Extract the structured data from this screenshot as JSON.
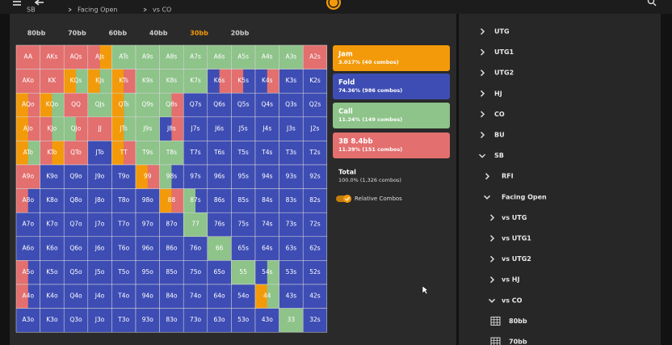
{
  "header": {
    "breadcrumb": [
      "SB",
      "Facing Open",
      "vs CO"
    ]
  },
  "stacks": {
    "items": [
      "80bb",
      "70bb",
      "60bb",
      "40bb",
      "30bb",
      "20bb"
    ],
    "selected": 4
  },
  "actions": [
    {
      "name": "Jam",
      "stats": "3.017% (40 combos)",
      "color": "#f39a0b"
    },
    {
      "name": "Fold",
      "stats": "74.36% (986 combos)",
      "color": "#3e4db4"
    },
    {
      "name": "Call",
      "stats": "11.24% (149 combos)",
      "color": "#8ec38a"
    },
    {
      "name": "3B 8.4bb",
      "stats": "11.39% (151 combos)",
      "color": "#e36f6f"
    }
  ],
  "grid": {
    "hands": [
      [
        "AA",
        "AKs",
        "AQs",
        "AJs",
        "ATs",
        "A9s",
        "A8s",
        "A7s",
        "A6s",
        "A5s",
        "A4s",
        "A3s",
        "A2s"
      ],
      [
        "AKo",
        "KK",
        "KQs",
        "KJs",
        "KTs",
        "K9s",
        "K8s",
        "K7s",
        "K6s",
        "K5s",
        "K4s",
        "K3s",
        "K2s"
      ],
      [
        "AQo",
        "KQo",
        "QQ",
        "QJs",
        "QTs",
        "Q9s",
        "Q8s",
        "Q7s",
        "Q6s",
        "Q5s",
        "Q4s",
        "Q3s",
        "Q2s"
      ],
      [
        "AJo",
        "KJo",
        "QJo",
        "JJ",
        "JTs",
        "J9s",
        "J8s",
        "J7s",
        "J6s",
        "J5s",
        "J4s",
        "J3s",
        "J2s"
      ],
      [
        "ATo",
        "KTo",
        "QTo",
        "JTo",
        "TT",
        "T9s",
        "T8s",
        "T7s",
        "T6s",
        "T5s",
        "T4s",
        "T3s",
        "T2s"
      ],
      [
        "A9o",
        "K9o",
        "Q9o",
        "J9o",
        "T9o",
        "99",
        "98s",
        "97s",
        "96s",
        "95s",
        "94s",
        "93s",
        "92s"
      ],
      [
        "A8o",
        "K8o",
        "Q8o",
        "J8o",
        "T8o",
        "98o",
        "88",
        "87s",
        "86s",
        "85s",
        "84s",
        "83s",
        "82s"
      ],
      [
        "A7o",
        "K7o",
        "Q7o",
        "J7o",
        "T7o",
        "97o",
        "87o",
        "77",
        "76s",
        "75s",
        "74s",
        "73s",
        "72s"
      ],
      [
        "A6o",
        "K6o",
        "Q6o",
        "J6o",
        "T6o",
        "96o",
        "86o",
        "76o",
        "66",
        "65s",
        "64s",
        "63s",
        "62s"
      ],
      [
        "A5o",
        "K5o",
        "Q5o",
        "J5o",
        "T5o",
        "95o",
        "85o",
        "75o",
        "65o",
        "55",
        "54s",
        "53s",
        "52s"
      ],
      [
        "A4o",
        "K4o",
        "Q4o",
        "J4o",
        "T4o",
        "94o",
        "84o",
        "74o",
        "64o",
        "54o",
        "44",
        "43s",
        "42s"
      ],
      [
        "A3o",
        "K3o",
        "Q3o",
        "J3o",
        "T3o",
        "93o",
        "83o",
        "73o",
        "63o",
        "53o",
        "43o",
        "33",
        "32s"
      ]
    ],
    "fills": [
      [
        "3",
        "3",
        "3",
        "30",
        "2",
        "2",
        "2",
        "2",
        "2",
        "2",
        "2",
        "2",
        "3"
      ],
      [
        "3",
        "3",
        "02",
        "02",
        "03",
        "2",
        "2",
        "2",
        "13",
        "31",
        "13",
        "1",
        "1"
      ],
      [
        "03",
        "02",
        "3",
        "2",
        "02",
        "2",
        "23",
        "1",
        "1",
        "1",
        "1",
        "1",
        "1"
      ],
      [
        "03",
        "32",
        "23",
        "3",
        "02",
        "2",
        "13",
        "1",
        "1",
        "1",
        "1",
        "1",
        "1"
      ],
      [
        "02",
        "30",
        "3",
        "1",
        "03",
        "2",
        "2",
        "1",
        "1",
        "1",
        "1",
        "1",
        "1"
      ],
      [
        "3",
        "1",
        "1",
        "1",
        "1",
        "03",
        "21",
        "1",
        "1",
        "1",
        "1",
        "1",
        "1"
      ],
      [
        "31",
        "1",
        "1",
        "1",
        "1",
        "1",
        "03",
        "21",
        "1",
        "1",
        "1",
        "1",
        "1"
      ],
      [
        "1",
        "1",
        "1",
        "1",
        "1",
        "1",
        "1",
        "2",
        "1",
        "1",
        "1",
        "1",
        "1"
      ],
      [
        "1",
        "1",
        "1",
        "1",
        "1",
        "1",
        "1",
        "1",
        "2",
        "1",
        "1",
        "1",
        "1"
      ],
      [
        "31",
        "1",
        "1",
        "1",
        "1",
        "1",
        "1",
        "1",
        "1",
        "2",
        "12",
        "1",
        "1"
      ],
      [
        "31",
        "1",
        "1",
        "1",
        "1",
        "1",
        "1",
        "1",
        "1",
        "1",
        "02",
        "1",
        "1"
      ],
      [
        "1",
        "1",
        "1",
        "1",
        "1",
        "1",
        "1",
        "1",
        "1",
        "1",
        "1",
        "2",
        "1"
      ]
    ]
  },
  "total": {
    "label": "Total",
    "stats": "100.0% (1,326 combos)"
  },
  "toggle": {
    "label": "Relative Combos",
    "on": true
  },
  "tree": [
    {
      "label": "UTG",
      "level": 0,
      "state": "collapsed"
    },
    {
      "label": "UTG1",
      "level": 0,
      "state": "collapsed"
    },
    {
      "label": "UTG2",
      "level": 0,
      "state": "collapsed"
    },
    {
      "label": "HJ",
      "level": 0,
      "state": "collapsed"
    },
    {
      "label": "CO",
      "level": 0,
      "state": "collapsed"
    },
    {
      "label": "BU",
      "level": 0,
      "state": "collapsed"
    },
    {
      "label": "SB",
      "level": 0,
      "state": "expanded"
    },
    {
      "label": "RFI",
      "level": 1,
      "state": "collapsed"
    },
    {
      "label": "Facing Open",
      "level": 1,
      "state": "expanded"
    },
    {
      "label": "vs UTG",
      "level": 2,
      "state": "collapsed"
    },
    {
      "label": "vs UTG1",
      "level": 2,
      "state": "collapsed"
    },
    {
      "label": "vs UTG2",
      "level": 2,
      "state": "collapsed"
    },
    {
      "label": "vs HJ",
      "level": 2,
      "state": "collapsed"
    },
    {
      "label": "vs CO",
      "level": 2,
      "state": "expanded"
    },
    {
      "label": "80bb",
      "level": 3,
      "state": "leaf"
    },
    {
      "label": "70bb",
      "level": 3,
      "state": "leaf"
    }
  ]
}
